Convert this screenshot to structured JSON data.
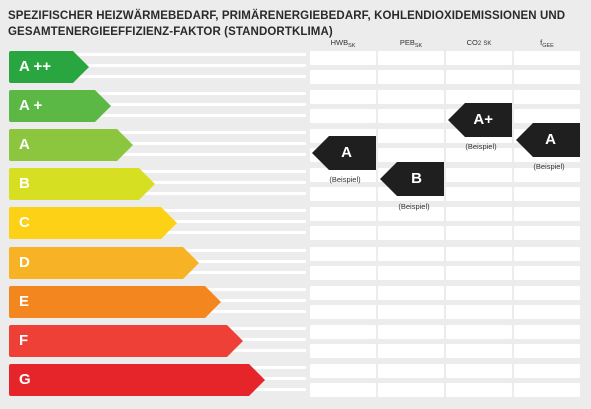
{
  "title": {
    "line1": "SPEZIFISCHER HEIZWÄRMEBEDARF, PRIMÄRENERGIEBEDARF, KOHLENDIOXIDEMISSIONEN UND",
    "line2": "GESAMTENERGIEEFFIZIENZ-FAKTOR (STANDORTKLIMA)"
  },
  "columns": [
    {
      "main": "HWB",
      "sub": "SK"
    },
    {
      "main": "PEB",
      "sub": "SK"
    },
    {
      "main": "CO",
      "mid": "2",
      "sub": "SK"
    },
    {
      "main": "f",
      "sub": "GEE"
    }
  ],
  "classes": [
    {
      "label": "A ++",
      "color": "#2aa640"
    },
    {
      "label": "A +",
      "color": "#5cb844"
    },
    {
      "label": "A",
      "color": "#8cc63f"
    },
    {
      "label": "B",
      "color": "#d7df23"
    },
    {
      "label": "C",
      "color": "#fcd116"
    },
    {
      "label": "D",
      "color": "#f7b225"
    },
    {
      "label": "E",
      "color": "#f48620"
    },
    {
      "label": "F",
      "color": "#ee4036"
    },
    {
      "label": "G",
      "color": "#e6252a"
    }
  ],
  "markers": [
    {
      "column": "HWB",
      "label": "A",
      "note": "(Beispiel)",
      "color": "#1f1f1f"
    },
    {
      "column": "PEB",
      "label": "B",
      "note": "(Beispiel)",
      "color": "#1f1f1f"
    },
    {
      "column": "CO2",
      "label": "A+",
      "note": "(Beispiel)",
      "color": "#1f1f1f"
    },
    {
      "column": "fGEE",
      "label": "A",
      "note": "(Beispiel)",
      "color": "#1f1f1f"
    }
  ]
}
